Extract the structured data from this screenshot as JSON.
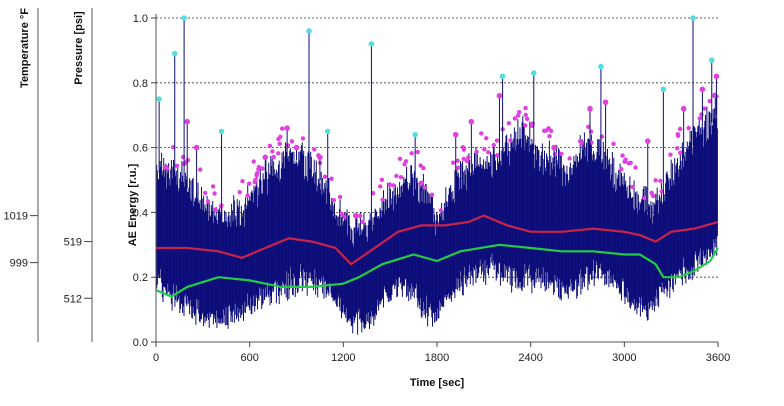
{
  "chart_data": {
    "type": "line",
    "title": "",
    "xlabel": "Time [sec]",
    "ylabel": "AE Energy [r.u.]",
    "xlim": [
      0,
      3600
    ],
    "ylim": [
      0.0,
      1.0
    ],
    "x_ticks": [
      0,
      600,
      1200,
      1800,
      2400,
      3000,
      3600
    ],
    "y_ticks": [
      0.0,
      0.2,
      0.4,
      0.6,
      0.8,
      1.0
    ],
    "grid": "horizontal-dashed",
    "legend": "none",
    "colors": {
      "ae_energy": "#0d0d7a",
      "peaks_magenta": "#e040e0",
      "peaks_cyan": "#55dde0",
      "pressure": "#c8244a",
      "temperature": "#22cc44"
    },
    "extra_axes": [
      {
        "title": "Pressure [psi]",
        "ticks": [
          {
            "label": "519",
            "y": 0.31
          },
          {
            "label": "512",
            "y": 0.135
          }
        ]
      },
      {
        "title": "Temperature °F",
        "ticks": [
          {
            "label": "1019",
            "y": 0.39
          },
          {
            "label": "999",
            "y": 0.245
          }
        ]
      }
    ],
    "series": [
      {
        "key": "pressure",
        "x": [
          0,
          200,
          400,
          550,
          700,
          850,
          1000,
          1150,
          1250,
          1400,
          1550,
          1700,
          1850,
          2000,
          2100,
          2250,
          2400,
          2600,
          2800,
          3000,
          3100,
          3200,
          3300,
          3450,
          3600
        ],
        "values": [
          0.29,
          0.29,
          0.28,
          0.26,
          0.29,
          0.32,
          0.31,
          0.29,
          0.24,
          0.29,
          0.34,
          0.36,
          0.36,
          0.37,
          0.39,
          0.36,
          0.34,
          0.34,
          0.35,
          0.34,
          0.33,
          0.31,
          0.34,
          0.35,
          0.37
        ]
      },
      {
        "key": "temperature",
        "x": [
          0,
          100,
          200,
          400,
          600,
          800,
          1000,
          1200,
          1300,
          1450,
          1650,
          1800,
          1950,
          2200,
          2400,
          2600,
          2800,
          3000,
          3100,
          3200,
          3250,
          3350,
          3450,
          3550,
          3600
        ],
        "values": [
          0.16,
          0.14,
          0.17,
          0.2,
          0.19,
          0.17,
          0.17,
          0.18,
          0.2,
          0.24,
          0.27,
          0.25,
          0.28,
          0.3,
          0.29,
          0.28,
          0.28,
          0.27,
          0.27,
          0.24,
          0.2,
          0.2,
          0.22,
          0.25,
          0.29
        ]
      }
    ],
    "ae_envelope": {
      "x": [
        0,
        60,
        150,
        250,
        350,
        450,
        550,
        650,
        750,
        850,
        950,
        1050,
        1150,
        1250,
        1350,
        1450,
        1550,
        1650,
        1750,
        1800,
        1850,
        1950,
        2050,
        2150,
        2250,
        2350,
        2450,
        2550,
        2650,
        2750,
        2850,
        2950,
        3050,
        3150,
        3250,
        3350,
        3450,
        3550,
        3600
      ],
      "upper": [
        0.58,
        0.56,
        0.55,
        0.5,
        0.44,
        0.41,
        0.44,
        0.52,
        0.58,
        0.62,
        0.6,
        0.55,
        0.45,
        0.37,
        0.4,
        0.45,
        0.52,
        0.55,
        0.48,
        0.4,
        0.45,
        0.55,
        0.6,
        0.58,
        0.62,
        0.7,
        0.62,
        0.6,
        0.55,
        0.65,
        0.62,
        0.55,
        0.5,
        0.45,
        0.48,
        0.6,
        0.66,
        0.72,
        0.76
      ],
      "lower": [
        0.18,
        0.12,
        0.1,
        0.06,
        0.04,
        0.05,
        0.06,
        0.1,
        0.12,
        0.14,
        0.16,
        0.15,
        0.1,
        0.04,
        0.03,
        0.1,
        0.15,
        0.12,
        0.05,
        0.05,
        0.1,
        0.15,
        0.18,
        0.2,
        0.17,
        0.15,
        0.17,
        0.15,
        0.12,
        0.16,
        0.18,
        0.15,
        0.1,
        0.06,
        0.13,
        0.17,
        0.2,
        0.24,
        0.28
      ]
    },
    "spikes": [
      {
        "x": 180,
        "y": 1.0,
        "marker": "cyan"
      },
      {
        "x": 980,
        "y": 0.96,
        "marker": "cyan"
      },
      {
        "x": 1380,
        "y": 0.92,
        "marker": "cyan"
      },
      {
        "x": 3440,
        "y": 1.0,
        "marker": "cyan"
      },
      {
        "x": 120,
        "y": 0.89,
        "marker": "cyan"
      },
      {
        "x": 20,
        "y": 0.75,
        "marker": "cyan"
      },
      {
        "x": 420,
        "y": 0.65,
        "marker": "cyan"
      },
      {
        "x": 1100,
        "y": 0.65,
        "marker": "cyan"
      },
      {
        "x": 1660,
        "y": 0.64,
        "marker": "cyan"
      },
      {
        "x": 2220,
        "y": 0.82,
        "marker": "cyan"
      },
      {
        "x": 2420,
        "y": 0.83,
        "marker": "cyan"
      },
      {
        "x": 2850,
        "y": 0.85,
        "marker": "cyan"
      },
      {
        "x": 3250,
        "y": 0.78,
        "marker": "cyan"
      },
      {
        "x": 3560,
        "y": 0.87,
        "marker": "cyan"
      },
      {
        "x": 200,
        "y": 0.68,
        "marker": "magenta"
      },
      {
        "x": 260,
        "y": 0.6,
        "marker": "magenta"
      },
      {
        "x": 700,
        "y": 0.57,
        "marker": "magenta"
      },
      {
        "x": 840,
        "y": 0.66,
        "marker": "magenta"
      },
      {
        "x": 900,
        "y": 0.6,
        "marker": "magenta"
      },
      {
        "x": 1050,
        "y": 0.57,
        "marker": "magenta"
      },
      {
        "x": 1280,
        "y": 0.39,
        "marker": "magenta"
      },
      {
        "x": 1700,
        "y": 0.49,
        "marker": "magenta"
      },
      {
        "x": 1920,
        "y": 0.64,
        "marker": "magenta"
      },
      {
        "x": 2020,
        "y": 0.68,
        "marker": "magenta"
      },
      {
        "x": 2200,
        "y": 0.76,
        "marker": "magenta"
      },
      {
        "x": 2550,
        "y": 0.6,
        "marker": "magenta"
      },
      {
        "x": 2780,
        "y": 0.72,
        "marker": "magenta"
      },
      {
        "x": 2880,
        "y": 0.74,
        "marker": "magenta"
      },
      {
        "x": 3150,
        "y": 0.62,
        "marker": "magenta"
      },
      {
        "x": 3380,
        "y": 0.72,
        "marker": "magenta"
      },
      {
        "x": 3500,
        "y": 0.78,
        "marker": "magenta"
      },
      {
        "x": 3590,
        "y": 0.82,
        "marker": "magenta"
      }
    ]
  }
}
